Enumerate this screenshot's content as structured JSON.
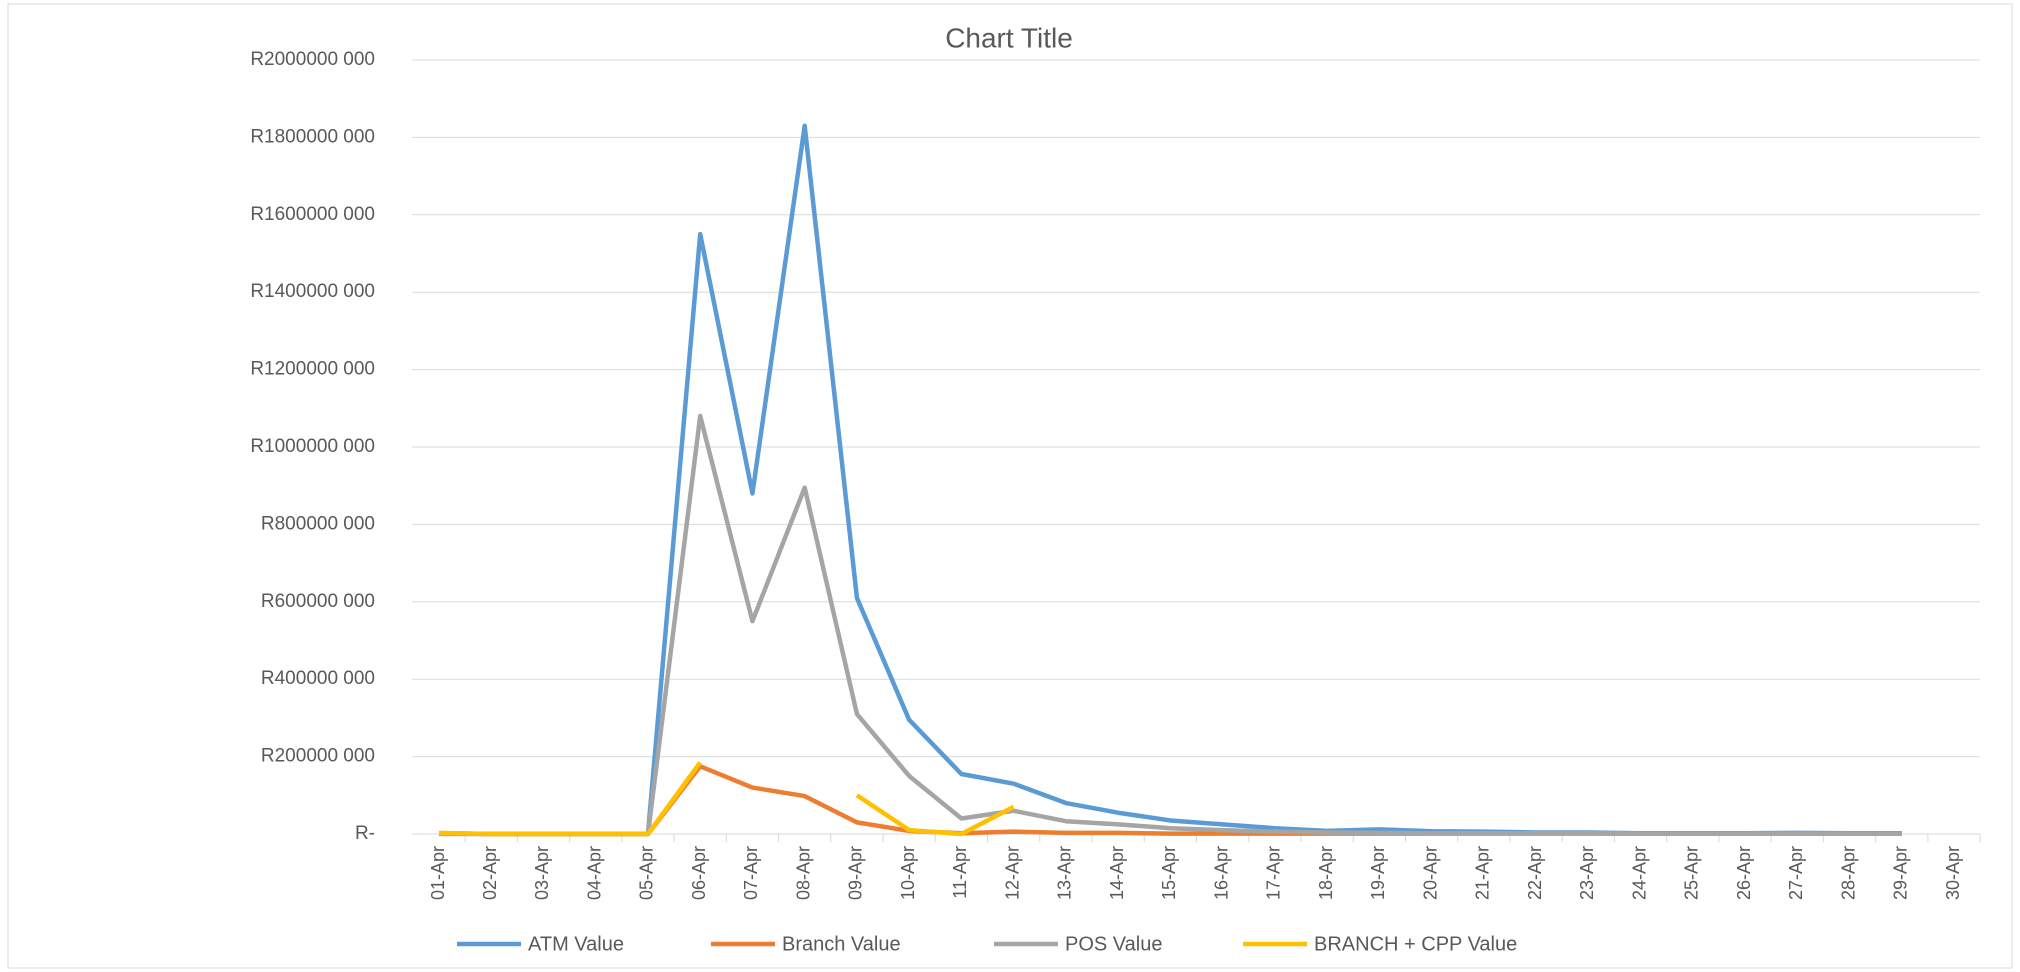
{
  "chart_data": {
    "type": "line",
    "title": "Chart Title",
    "categories": [
      "01-Apr",
      "02-Apr",
      "03-Apr",
      "04-Apr",
      "05-Apr",
      "06-Apr",
      "07-Apr",
      "08-Apr",
      "09-Apr",
      "10-Apr",
      "11-Apr",
      "12-Apr",
      "13-Apr",
      "14-Apr",
      "15-Apr",
      "16-Apr",
      "17-Apr",
      "18-Apr",
      "19-Apr",
      "20-Apr",
      "21-Apr",
      "22-Apr",
      "23-Apr",
      "24-Apr",
      "25-Apr",
      "26-Apr",
      "27-Apr",
      "28-Apr",
      "29-Apr",
      "30-Apr"
    ],
    "series": [
      {
        "name": "ATM Value",
        "color": "#5b9bd5",
        "values": [
          2000000,
          0,
          0,
          0,
          0,
          1550000000,
          880000000,
          1830000000,
          610000000,
          295000000,
          155000000,
          130000000,
          80000000,
          55000000,
          35000000,
          25000000,
          15000000,
          8000000,
          12000000,
          7000000,
          6000000,
          4000000,
          4000000,
          2000000,
          2000000,
          2000000,
          3000000,
          2000000,
          2000000,
          null
        ]
      },
      {
        "name": "Branch Value",
        "color": "#ed7d31",
        "values": [
          2000000,
          0,
          0,
          0,
          0,
          175000000,
          120000000,
          98000000,
          30000000,
          8000000,
          2000000,
          6000000,
          3000000,
          3000000,
          1000000,
          1000000,
          1000000,
          1000000,
          1000000,
          1000000,
          1000000,
          1000000,
          1000000,
          1000000,
          1000000,
          1000000,
          1000000,
          1000000,
          1000000,
          null
        ]
      },
      {
        "name": "POS Value",
        "color": "#a5a5a5",
        "values": [
          0,
          0,
          0,
          0,
          0,
          1080000000,
          550000000,
          895000000,
          310000000,
          150000000,
          40000000,
          60000000,
          33000000,
          25000000,
          15000000,
          10000000,
          6000000,
          4000000,
          3000000,
          2000000,
          2000000,
          2000000,
          2000000,
          1000000,
          1000000,
          1000000,
          1000000,
          1000000,
          1000000,
          null
        ]
      },
      {
        "name": "BRANCH + CPP Value",
        "color": "#ffc000",
        "values": [
          3000000,
          0,
          0,
          0,
          0,
          185000000,
          null,
          null,
          100000000,
          10000000,
          0,
          70000000,
          null,
          null,
          null,
          null,
          null,
          null,
          null,
          null,
          null,
          null,
          null,
          null,
          null,
          null,
          null,
          null,
          null,
          null
        ]
      }
    ],
    "ylim": [
      0,
      2000000000
    ],
    "yticks": [
      {
        "value": 0,
        "label": "R-"
      },
      {
        "value": 200000000,
        "label": "R200000 000"
      },
      {
        "value": 400000000,
        "label": "R400000 000"
      },
      {
        "value": 600000000,
        "label": "R600000 000"
      },
      {
        "value": 800000000,
        "label": "R800000 000"
      },
      {
        "value": 1000000000,
        "label": "R1000000 000"
      },
      {
        "value": 1200000000,
        "label": "R1200000 000"
      },
      {
        "value": 1400000000,
        "label": "R1400000 000"
      },
      {
        "value": 1600000000,
        "label": "R1600000 000"
      },
      {
        "value": 1800000000,
        "label": "R1800000 000"
      },
      {
        "value": 2000000000,
        "label": "R2000000 000"
      }
    ],
    "grid": true,
    "legend": "bottom"
  }
}
